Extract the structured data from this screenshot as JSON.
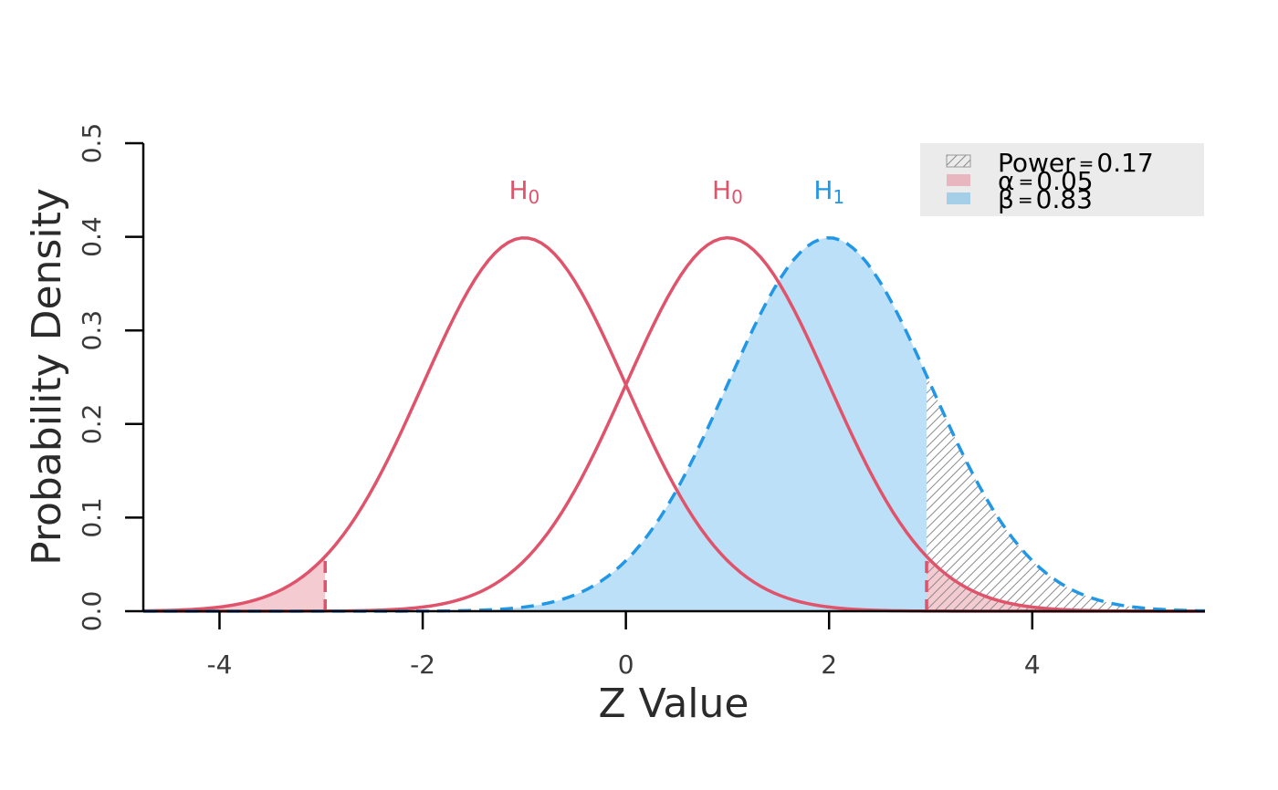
{
  "chart_data": {
    "type": "area",
    "xlabel": "Z Value",
    "ylabel": "Probability Density",
    "xlim": [
      -4.75,
      5.7
    ],
    "ylim": [
      0,
      0.5
    ],
    "x_ticks": [
      "-4",
      "-2",
      "0",
      "2",
      "4"
    ],
    "x_tick_values": [
      -4,
      -2,
      0,
      2,
      4
    ],
    "y_ticks": [
      "0.0",
      "0.1",
      "0.2",
      "0.3",
      "0.4",
      "0.5"
    ],
    "y_tick_values": [
      0,
      0.1,
      0.2,
      0.3,
      0.4,
      0.5
    ],
    "grid": false,
    "critical_values": [
      -2.96,
      2.96
    ],
    "series": [
      {
        "label": "H₀",
        "distribution": "normal",
        "mean": -1,
        "sd": 1,
        "line_style": "solid",
        "color": "#df536b"
      },
      {
        "label": "H₀",
        "distribution": "normal",
        "mean": 1,
        "sd": 1,
        "line_style": "solid",
        "color": "#df536b"
      },
      {
        "label": "H₁",
        "distribution": "normal",
        "mean": 2,
        "sd": 1,
        "line_style": "dashed",
        "color": "#2297e6"
      }
    ],
    "shaded_regions": [
      {
        "name": "alpha",
        "under_mean": -1,
        "x_from": -4.75,
        "x_to": -2.96,
        "color": "#df536b",
        "opacity": 0.3
      },
      {
        "name": "alpha",
        "under_mean": 1,
        "x_from": 2.96,
        "x_to": 5.7,
        "color": "#df536b",
        "opacity": 0.3
      },
      {
        "name": "beta",
        "under_mean": 2,
        "x_from": -2.96,
        "x_to": 2.96,
        "color": "#2297e6",
        "opacity": 0.3
      },
      {
        "name": "power",
        "under_mean": 2,
        "x_from": 2.96,
        "x_to": 5.7,
        "color": "#9a9a9a",
        "pattern": "hatched"
      }
    ],
    "legend": {
      "position": "top-right",
      "background": "#ebebeb",
      "entries": [
        {
          "symbol": "α",
          "value": "0.05",
          "swatch": "alpha"
        },
        {
          "symbol": "Power",
          "value": "0.17",
          "swatch": "power"
        },
        {
          "symbol": "β",
          "value": "0.83",
          "swatch": "beta"
        }
      ]
    }
  }
}
